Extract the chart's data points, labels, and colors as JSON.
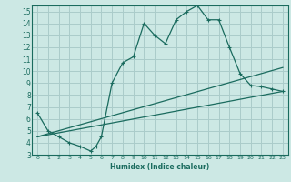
{
  "xlabel": "Humidex (Indice chaleur)",
  "ylabel": "",
  "xlim": [
    -0.5,
    23.5
  ],
  "ylim": [
    3.0,
    15.5
  ],
  "yticks": [
    3,
    4,
    5,
    6,
    7,
    8,
    9,
    10,
    11,
    12,
    13,
    14,
    15
  ],
  "xticks": [
    0,
    1,
    2,
    3,
    4,
    5,
    6,
    7,
    8,
    9,
    10,
    11,
    12,
    13,
    14,
    15,
    16,
    17,
    18,
    19,
    20,
    21,
    22,
    23
  ],
  "bg_color": "#cce8e4",
  "grid_color": "#aaccca",
  "line_color": "#1a6b5e",
  "curve1_x": [
    0,
    1,
    2,
    3,
    4,
    5,
    5.5,
    6,
    7,
    8,
    9,
    10,
    11,
    12,
    13,
    14,
    15,
    16,
    17,
    18,
    19,
    20,
    21,
    22,
    23
  ],
  "curve1_y": [
    6.5,
    5.0,
    4.5,
    4.0,
    3.7,
    3.3,
    3.7,
    4.5,
    9.0,
    10.7,
    11.2,
    14.0,
    13.0,
    12.3,
    14.3,
    15.0,
    15.5,
    14.3,
    14.3,
    12.0,
    9.8,
    8.8,
    8.7,
    8.5,
    8.3
  ],
  "line2_x": [
    0,
    23
  ],
  "line2_y": [
    4.5,
    8.3
  ],
  "line3_x": [
    0,
    23
  ],
  "line3_y": [
    4.5,
    10.3
  ],
  "xlabel_fontsize": 5.5,
  "tick_fontsize_x": 4.5,
  "tick_fontsize_y": 5.5
}
